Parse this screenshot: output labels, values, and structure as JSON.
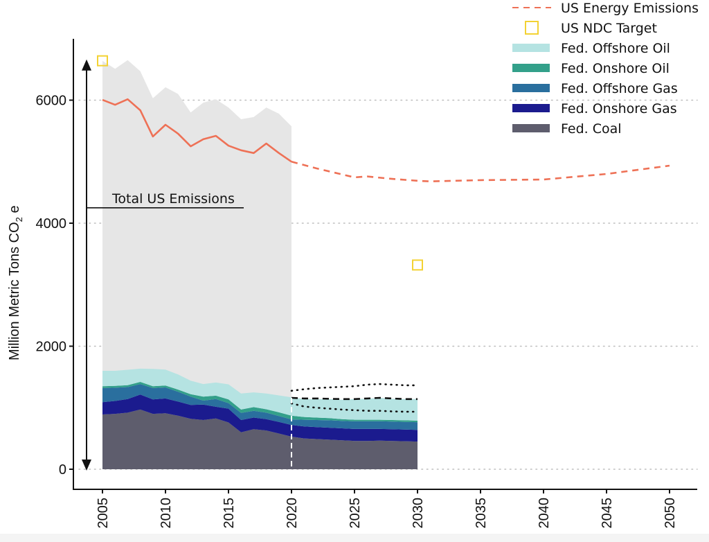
{
  "chart_data": {
    "type": "area",
    "title": "",
    "xlabel": "",
    "ylabel": "Million Metric Tons CO2 e",
    "ylabel_main": "Million Metric Tons CO",
    "ylabel_sub": "2",
    "ylabel_tail": " e",
    "xlim": [
      2003,
      2052
    ],
    "ylim": [
      -320,
      6800
    ],
    "x_ticks": [
      2005,
      2010,
      2015,
      2020,
      2025,
      2030,
      2035,
      2040,
      2045,
      2050
    ],
    "x_tick_labels": [
      "2005",
      "2010",
      "2015",
      "2020",
      "2025",
      "2030",
      "2035",
      "2040",
      "2045",
      "2050"
    ],
    "y_ticks": [
      0,
      2000,
      4000,
      6000
    ],
    "y_tick_labels": [
      "0",
      "2000",
      "4000",
      "6000"
    ],
    "grid": "horizontal-dotted",
    "legend_position": "top-right",
    "projection_start_year": 2020,
    "annotation": {
      "text": "Total US Emissions",
      "arrow_from": 0,
      "arrow_to": 6640,
      "pointer_value": 4250
    },
    "total_us_emissions": {
      "name": "Total US Emissions",
      "color": "#e6e6e6",
      "x": [
        2005,
        2006,
        2007,
        2008,
        2009,
        2010,
        2011,
        2012,
        2013,
        2014,
        2015,
        2016,
        2017,
        2018,
        2019,
        2020
      ],
      "values": [
        6640,
        6510,
        6650,
        6470,
        6030,
        6210,
        6100,
        5800,
        5960,
        6015,
        5880,
        5690,
        5725,
        5880,
        5780,
        5575
      ]
    },
    "us_energy_emissions": {
      "name": "US Energy Emissions",
      "color": "#ee7156",
      "historical_x": [
        2005,
        2006,
        2007,
        2008,
        2009,
        2010,
        2011,
        2012,
        2013,
        2014,
        2015,
        2016,
        2017,
        2018,
        2019,
        2020
      ],
      "historical_values": [
        6005,
        5925,
        6015,
        5835,
        5410,
        5600,
        5455,
        5250,
        5365,
        5420,
        5260,
        5185,
        5140,
        5295,
        5140,
        5000
      ],
      "projected_x": [
        2020,
        2022,
        2025,
        2026,
        2028,
        2030,
        2031,
        2035,
        2040,
        2045,
        2050
      ],
      "projected_values": [
        5000,
        4890,
        4745,
        4760,
        4720,
        4690,
        4680,
        4700,
        4710,
        4800,
        4935
      ]
    },
    "us_ndc_target": {
      "name": "US NDC Target",
      "color": "#f3d233",
      "x": [
        2005,
        2030
      ],
      "values": [
        6640,
        3320
      ]
    },
    "stacked_series": {
      "x": [
        2005,
        2006,
        2007,
        2008,
        2009,
        2010,
        2011,
        2012,
        2013,
        2014,
        2015,
        2016,
        2017,
        2018,
        2019,
        2020,
        2021,
        2022,
        2023,
        2024,
        2025,
        2026,
        2027,
        2028,
        2029,
        2030
      ],
      "series": [
        {
          "name": "Fed. Coal",
          "color": "#5e5d6d",
          "values": [
            890,
            900,
            920,
            970,
            900,
            910,
            870,
            820,
            800,
            825,
            760,
            600,
            650,
            630,
            580,
            530,
            500,
            490,
            480,
            470,
            460,
            460,
            465,
            460,
            455,
            450
          ]
        },
        {
          "name": "Fed. Onshore Gas",
          "color": "#1b1b8e",
          "values": [
            200,
            210,
            220,
            245,
            235,
            240,
            230,
            225,
            250,
            190,
            225,
            200,
            190,
            185,
            190,
            190,
            195,
            195,
            195,
            195,
            195,
            195,
            190,
            190,
            190,
            190
          ]
        },
        {
          "name": "Fed. Offshore Gas",
          "color": "#2a6f9e",
          "values": [
            230,
            215,
            195,
            170,
            185,
            180,
            160,
            135,
            65,
            125,
            90,
            115,
            110,
            105,
            95,
            90,
            110,
            115,
            120,
            120,
            125,
            125,
            125,
            125,
            125,
            125
          ]
        },
        {
          "name": "Fed. Onshore Oil",
          "color": "#33a08a",
          "values": [
            30,
            30,
            32,
            35,
            30,
            30,
            35,
            40,
            65,
            55,
            60,
            55,
            60,
            55,
            60,
            60,
            45,
            40,
            35,
            30,
            25,
            25,
            25,
            25,
            25,
            25
          ]
        },
        {
          "name": "Fed. Offshore Oil",
          "color": "#b5e3e2",
          "values": [
            250,
            245,
            250,
            215,
            280,
            260,
            245,
            220,
            205,
            215,
            245,
            260,
            240,
            255,
            275,
            300,
            290,
            300,
            310,
            315,
            335,
            340,
            355,
            345,
            345,
            350
          ]
        }
      ]
    },
    "projection_range": {
      "x": [
        2020,
        2021,
        2022,
        2023,
        2024,
        2025,
        2026,
        2027,
        2028,
        2029,
        2030
      ],
      "central": [
        1160,
        1150,
        1150,
        1145,
        1140,
        1140,
        1150,
        1160,
        1150,
        1140,
        1140
      ],
      "upper": [
        1275,
        1300,
        1320,
        1330,
        1340,
        1350,
        1375,
        1385,
        1375,
        1365,
        1365
      ],
      "lower": [
        1070,
        1020,
        1000,
        985,
        970,
        960,
        950,
        950,
        940,
        935,
        935
      ]
    },
    "legend": [
      {
        "label": "US Energy Emissions",
        "kind": "dashed-line",
        "color": "#ee7156"
      },
      {
        "label": "US NDC Target",
        "kind": "square",
        "color": "#f3d233"
      },
      {
        "label": "Fed. Offshore Oil",
        "kind": "bar",
        "color": "#b5e3e2"
      },
      {
        "label": "Fed. Onshore Oil",
        "kind": "bar",
        "color": "#33a08a"
      },
      {
        "label": "Fed. Offshore Gas",
        "kind": "bar",
        "color": "#2a6f9e"
      },
      {
        "label": "Fed. Onshore Gas",
        "kind": "bar",
        "color": "#1b1b8e"
      },
      {
        "label": "Fed. Coal",
        "kind": "bar",
        "color": "#5e5d6d"
      }
    ]
  }
}
